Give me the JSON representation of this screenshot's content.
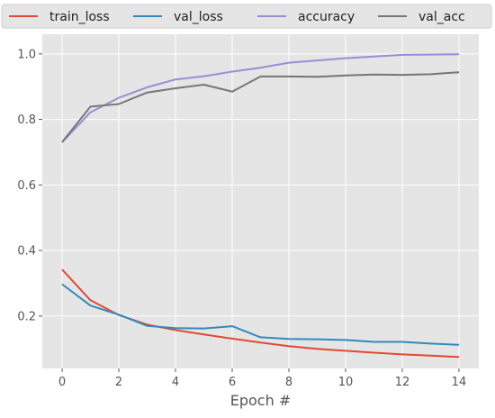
{
  "chart_data": {
    "type": "line",
    "title": "",
    "xlabel": "Epoch #",
    "ylabel": "",
    "xlim": [
      -0.7,
      14.7
    ],
    "ylim": [
      0.04,
      1.06
    ],
    "xticks": [
      0,
      2,
      4,
      6,
      8,
      10,
      12,
      14
    ],
    "yticks": [
      0.2,
      0.4,
      0.6,
      0.8,
      1.0
    ],
    "ytick_labels": [
      "0.2",
      "0.4",
      "0.6",
      "0.8",
      "1.0"
    ],
    "grid": true,
    "legend_position": "top",
    "x": [
      0,
      1,
      2,
      3,
      4,
      5,
      6,
      7,
      8,
      9,
      10,
      11,
      12,
      13,
      14
    ],
    "series": [
      {
        "name": "train_loss",
        "color": "#e24a33",
        "values": [
          0.342,
          0.248,
          0.203,
          0.174,
          0.157,
          0.144,
          0.131,
          0.119,
          0.108,
          0.1,
          0.094,
          0.088,
          0.083,
          0.079,
          0.075
        ]
      },
      {
        "name": "val_loss",
        "color": "#348abd",
        "values": [
          0.297,
          0.232,
          0.204,
          0.17,
          0.163,
          0.162,
          0.169,
          0.135,
          0.13,
          0.129,
          0.127,
          0.121,
          0.121,
          0.116,
          0.112
        ]
      },
      {
        "name": "accuracy",
        "color": "#988ed5",
        "values": [
          0.73,
          0.822,
          0.866,
          0.898,
          0.922,
          0.932,
          0.946,
          0.958,
          0.973,
          0.98,
          0.987,
          0.992,
          0.997,
          0.998,
          0.999
        ]
      },
      {
        "name": "val_acc",
        "color": "#777777",
        "values": [
          0.731,
          0.839,
          0.847,
          0.882,
          0.895,
          0.906,
          0.885,
          0.931,
          0.931,
          0.93,
          0.934,
          0.937,
          0.936,
          0.938,
          0.944
        ]
      }
    ]
  }
}
